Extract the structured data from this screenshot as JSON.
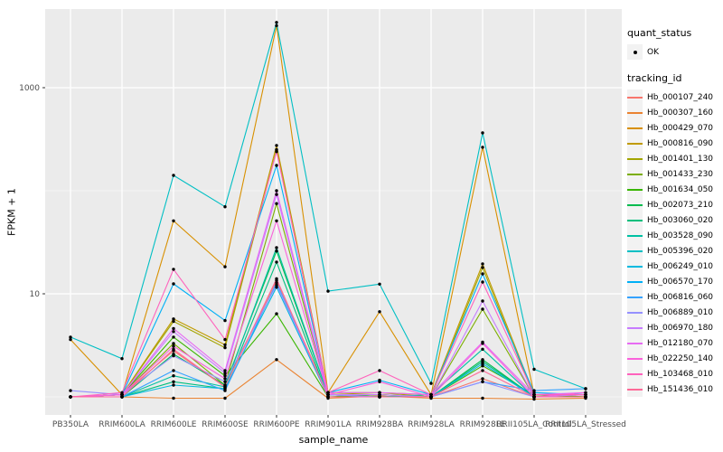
{
  "figure": {
    "background": "#FFFFFF",
    "panel_background": "#EBEBEB",
    "gridline_major_color": "#FFFFFF",
    "gridline_minor_color": "#F7F7F7",
    "tick_color": "#333333",
    "axis_text_color": "#4D4D4D",
    "point_color": "#000000",
    "legend_key_fill": "#F2F2F2"
  },
  "chart_data": {
    "type": "line",
    "title": "",
    "xlabel": "sample_name",
    "ylabel": "FPKM + 1",
    "y_scale": "log10",
    "ylim": [
      0.72,
      5800
    ],
    "grid": true,
    "legend_position": "right",
    "y_major_ticks": [
      {
        "label": "10",
        "value": 10
      },
      {
        "label": "1000",
        "value": 1000
      }
    ],
    "y_minor_values": [
      1,
      100
    ],
    "categories": [
      "PB350LA",
      "RRIM600LA",
      "RRIM600LE",
      "RRIM600SE",
      "RRIM600PE",
      "RRIM901LA",
      "RRIM928BA",
      "RRIM928LA",
      "RRIM928LE",
      "RRII105LA_Control",
      "RRII105LA_Stressed"
    ],
    "legend": {
      "quant_status": {
        "title": "quant_status",
        "items": [
          {
            "label": "OK",
            "marker": "point",
            "color": "#000000"
          }
        ]
      },
      "tracking_id": {
        "title": "tracking_id"
      }
    },
    "series": [
      {
        "id": "Hb_000107_240",
        "color": "#F8766D",
        "values": [
          1.0,
          1.05,
          2.8,
          1.25,
          13.5,
          1.05,
          1.0,
          1.0,
          1.5,
          1.0,
          1.0
        ]
      },
      {
        "id": "Hb_000307_160",
        "color": "#EA8331",
        "values": [
          1.0,
          1.0,
          0.97,
          0.97,
          2.3,
          0.97,
          1.02,
          0.97,
          0.97,
          0.95,
          0.97
        ]
      },
      {
        "id": "Hb_000429_070",
        "color": "#D89000",
        "values": [
          3.6,
          1.05,
          51,
          18.3,
          4000,
          1.1,
          6.7,
          1.05,
          264,
          1.05,
          1.0
        ]
      },
      {
        "id": "Hb_000816_090",
        "color": "#C09B00",
        "values": [
          1.0,
          1.05,
          5.7,
          3.2,
          275,
          1.1,
          1.1,
          1.05,
          19.5,
          1.05,
          1.0
        ]
      },
      {
        "id": "Hb_001401_130",
        "color": "#A3A500",
        "values": [
          1.0,
          1.05,
          5.4,
          3.0,
          250,
          1.05,
          1.1,
          1.0,
          18.0,
          1.0,
          1.05
        ]
      },
      {
        "id": "Hb_001433_230",
        "color": "#7CAE00",
        "values": [
          1.0,
          1.05,
          3.3,
          1.3,
          75,
          1.05,
          1.05,
          1.0,
          7.1,
          1.0,
          1.0
        ]
      },
      {
        "id": "Hb_001634_050",
        "color": "#39B600",
        "values": [
          1.0,
          1.05,
          3.8,
          1.6,
          6.4,
          1.0,
          1.05,
          1.0,
          2.0,
          1.05,
          1.0
        ]
      },
      {
        "id": "Hb_002073_210",
        "color": "#00BB4E",
        "values": [
          1.0,
          1.0,
          2.6,
          1.3,
          26,
          1.05,
          1.0,
          1.0,
          2.3,
          1.0,
          1.0
        ]
      },
      {
        "id": "Hb_003060_020",
        "color": "#00BF7D",
        "values": [
          1.0,
          1.0,
          1.4,
          1.2,
          20.3,
          1.0,
          1.0,
          1.0,
          2.2,
          1.0,
          1.0
        ]
      },
      {
        "id": "Hb_003528_090",
        "color": "#00C1A3",
        "values": [
          1.0,
          1.0,
          1.6,
          1.25,
          28,
          1.05,
          1.0,
          1.05,
          2.9,
          1.0,
          1.0
        ]
      },
      {
        "id": "Hb_005396_020",
        "color": "#00BFC4",
        "values": [
          3.8,
          2.35,
          141,
          70,
          4300,
          10.6,
          12.4,
          1.35,
          364,
          1.85,
          1.2
        ]
      },
      {
        "id": "Hb_006249_010",
        "color": "#00BAE0",
        "values": [
          1.0,
          1.0,
          1.3,
          1.2,
          11.6,
          1.0,
          1.0,
          1.0,
          2.1,
          1.0,
          1.0
        ]
      },
      {
        "id": "Hb_006570_170",
        "color": "#00B0F6",
        "values": [
          1.0,
          1.05,
          12.5,
          5.5,
          176,
          1.1,
          1.45,
          1.05,
          15.6,
          1.1,
          1.05
        ]
      },
      {
        "id": "Hb_006816_060",
        "color": "#35A2FF",
        "values": [
          1.0,
          1.0,
          1.8,
          1.15,
          12.8,
          1.0,
          1.0,
          1.0,
          1.4,
          1.15,
          1.2
        ]
      },
      {
        "id": "Hb_006889_010",
        "color": "#9590FF",
        "values": [
          1.15,
          1.05,
          2.5,
          1.4,
          12.2,
          1.05,
          1.0,
          1.0,
          1.4,
          1.0,
          1.0
        ]
      },
      {
        "id": "Hb_006970_180",
        "color": "#C77CFF",
        "values": [
          1.0,
          1.05,
          4.3,
          1.7,
          92,
          1.05,
          1.05,
          1.0,
          8.5,
          1.0,
          1.05
        ]
      },
      {
        "id": "Hb_012180_070",
        "color": "#E76BF3",
        "values": [
          1.0,
          1.05,
          4.6,
          1.8,
          100,
          1.1,
          1.1,
          1.05,
          3.4,
          1.05,
          1.1
        ]
      },
      {
        "id": "Hb_022250_140",
        "color": "#FA62DB",
        "values": [
          1.0,
          1.05,
          3.1,
          1.5,
          51,
          1.05,
          1.4,
          1.0,
          3.3,
          1.0,
          1.1
        ]
      },
      {
        "id": "Hb_103468_010",
        "color": "#FF62BC",
        "values": [
          1.0,
          1.1,
          17.3,
          3.6,
          240,
          1.1,
          1.8,
          1.05,
          13.0,
          1.05,
          1.05
        ]
      },
      {
        "id": "Hb_151436_010",
        "color": "#FF6A98",
        "values": [
          1.0,
          1.0,
          2.9,
          1.25,
          14,
          1.0,
          1.0,
          1.0,
          1.8,
          1.0,
          1.0
        ]
      }
    ]
  }
}
